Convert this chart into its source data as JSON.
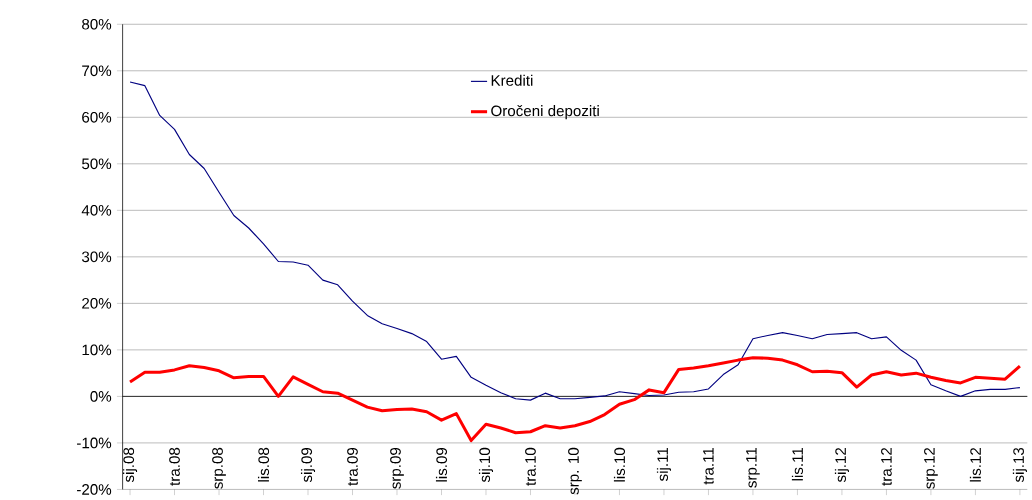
{
  "chart_data": {
    "type": "line",
    "categories": [
      "sij.08",
      null,
      null,
      "tra.08",
      null,
      null,
      "srp.08",
      null,
      null,
      "lis.08",
      null,
      null,
      "sij.09",
      null,
      null,
      "tra.09",
      null,
      null,
      "srp.09",
      null,
      null,
      "lis.09",
      null,
      null,
      "sij.10",
      null,
      null,
      "tra.10",
      null,
      null,
      "srp. 10",
      null,
      null,
      "lis.10",
      null,
      null,
      "sij.11",
      null,
      null,
      "tra.11",
      null,
      null,
      "srp.11",
      null,
      null,
      "lis.11",
      null,
      null,
      "sij.12",
      null,
      null,
      "tra.12",
      null,
      null,
      "srp.12",
      null,
      null,
      "lis.12",
      null,
      null,
      "sij.13"
    ],
    "series": [
      {
        "name": "Krediti",
        "color": "#000080",
        "values": [
          67.6,
          66.8,
          60.4,
          57.4,
          52.0,
          49.0,
          43.9,
          38.9,
          36.2,
          32.8,
          29.0,
          28.9,
          28.2,
          25.0,
          24.0,
          20.5,
          17.4,
          15.6,
          14.6,
          13.5,
          11.8,
          8.0,
          8.6,
          4.1,
          2.4,
          0.8,
          -0.5,
          -0.8,
          0.7,
          -0.5,
          -0.5,
          -0.2,
          0.1,
          1.0,
          0.6,
          0.2,
          0.3,
          0.9,
          1.0,
          1.6,
          4.7,
          6.8,
          12.4,
          13.1,
          13.7,
          13.1,
          12.4,
          13.3,
          13.5,
          13.7,
          12.4,
          12.8,
          9.9,
          7.8,
          2.5,
          1.2,
          0.0,
          1.2,
          1.5,
          1.5,
          1.9
        ]
      },
      {
        "name": "Oročeni depoziti",
        "color": "#ff0000",
        "values": [
          3.1,
          5.2,
          5.2,
          5.7,
          6.6,
          6.2,
          5.5,
          4.0,
          4.3,
          4.3,
          0.0,
          4.2,
          2.6,
          1.0,
          0.7,
          -0.8,
          -2.3,
          -3.1,
          -2.8,
          -2.7,
          -3.3,
          -5.1,
          -3.7,
          -9.5,
          -6.0,
          -6.8,
          -7.8,
          -7.6,
          -6.3,
          -6.8,
          -6.3,
          -5.4,
          -3.9,
          -1.7,
          -0.7,
          1.4,
          0.8,
          5.8,
          6.1,
          6.6,
          7.2,
          7.8,
          8.3,
          8.2,
          7.8,
          6.8,
          5.3,
          5.4,
          5.1,
          2.0,
          4.6,
          5.3,
          4.6,
          5.0,
          4.1,
          3.4,
          2.9,
          4.1,
          3.9,
          3.7,
          6.5
        ]
      }
    ],
    "ylim": [
      -20,
      80
    ],
    "yticks": [
      {
        "value": -20,
        "label": "-20%"
      },
      {
        "value": -10,
        "label": "-10%"
      },
      {
        "value": 0,
        "label": "0%"
      },
      {
        "value": 10,
        "label": "10%"
      },
      {
        "value": 20,
        "label": "20%"
      },
      {
        "value": 30,
        "label": "30%"
      },
      {
        "value": 40,
        "label": "40%"
      },
      {
        "value": 50,
        "label": "50%"
      },
      {
        "value": 60,
        "label": "60%"
      },
      {
        "value": 70,
        "label": "70%"
      },
      {
        "value": 80,
        "label": "80%"
      }
    ],
    "grid": "y",
    "legend": "top",
    "line_style": "solid",
    "marker": "none"
  }
}
